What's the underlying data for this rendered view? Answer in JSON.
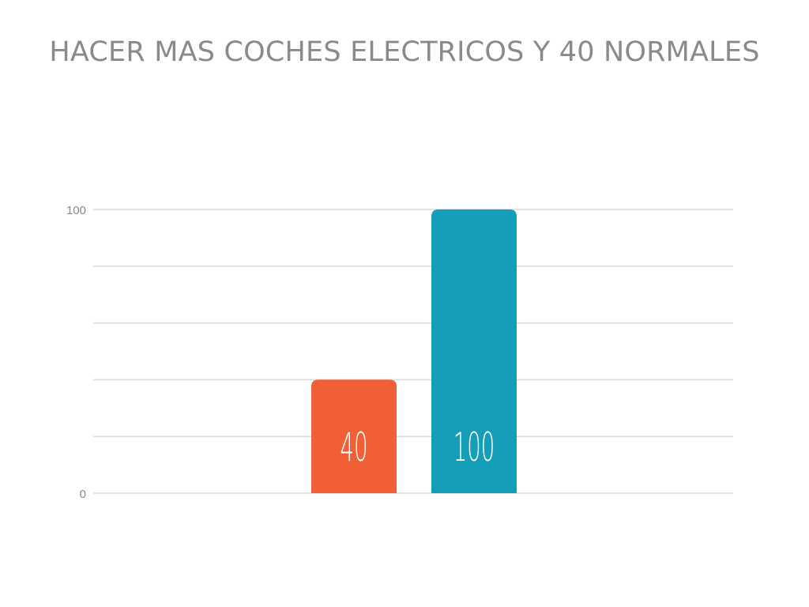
{
  "chart_data": {
    "type": "bar",
    "title": "HACER MAS COCHES ELECTRICOS Y 40 NORMALES",
    "xlabel": "",
    "ylabel": "",
    "categories": [
      "",
      ""
    ],
    "values": [
      40,
      100
    ],
    "colors": [
      "#f05f35",
      "#159eb9"
    ],
    "ylim": [
      0,
      100
    ],
    "yticks": [
      "0",
      "100"
    ],
    "grid": true,
    "data_labels": [
      "40",
      "100"
    ]
  }
}
